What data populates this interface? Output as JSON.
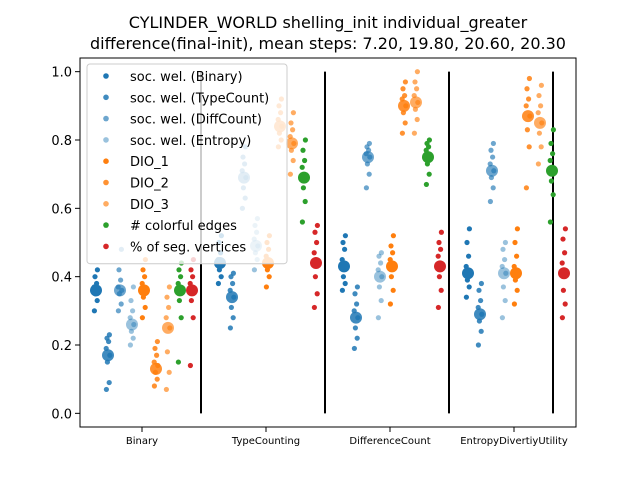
{
  "chart_data": {
    "type": "scatter",
    "title": "CYLINDER_WORLD shelling_init individual_greater",
    "subtitle": "difference(final-init), mean steps: 7.20, 19.80, 20.60, 20.30",
    "xlabel": "",
    "ylabel": "",
    "ylim": [
      -0.04,
      1.04
    ],
    "yticks": [
      "0.0",
      "0.2",
      "0.4",
      "0.6",
      "0.8",
      "1.0"
    ],
    "categories": [
      "Binary",
      "TypeCounting",
      "DifferenceCount",
      "EntropyDivertiyUtility"
    ],
    "legend_position": "upper-left",
    "grid": false,
    "series": [
      {
        "name": "soc. wel. (Binary)",
        "color": "#1f77b4",
        "alpha": 1.0,
        "means": [
          0.36,
          0.44,
          0.43,
          0.41
        ],
        "points": [
          [
            0.3,
            0.33,
            0.35,
            0.36,
            0.37,
            0.38,
            0.4,
            0.42
          ],
          [
            0.38,
            0.4,
            0.42,
            0.44,
            0.45,
            0.47,
            0.5,
            0.52
          ],
          [
            0.36,
            0.38,
            0.4,
            0.43,
            0.45,
            0.48,
            0.5,
            0.52
          ],
          [
            0.34,
            0.37,
            0.39,
            0.41,
            0.43,
            0.46,
            0.5,
            0.54
          ]
        ]
      },
      {
        "name": "soc. wel. (TypeCount)",
        "color": "#1f77b4",
        "alpha": 0.85,
        "means": [
          0.17,
          0.34,
          0.28,
          0.29
        ],
        "points": [
          [
            0.07,
            0.09,
            0.15,
            0.17,
            0.19,
            0.21,
            0.22,
            0.23
          ],
          [
            0.25,
            0.28,
            0.31,
            0.34,
            0.36,
            0.38,
            0.4,
            0.41
          ],
          [
            0.19,
            0.22,
            0.25,
            0.28,
            0.3,
            0.32,
            0.35,
            0.37
          ],
          [
            0.2,
            0.24,
            0.27,
            0.29,
            0.31,
            0.33,
            0.36,
            0.38
          ]
        ]
      },
      {
        "name": "soc. wel. (DiffCount)",
        "color": "#1f77b4",
        "alpha": 0.65,
        "means": [
          0.36,
          0.69,
          0.75,
          0.71
        ],
        "points": [
          [
            0.3,
            0.32,
            0.35,
            0.36,
            0.37,
            0.39,
            0.42,
            0.48
          ],
          [
            0.6,
            0.63,
            0.66,
            0.69,
            0.71,
            0.73,
            0.75,
            0.78
          ],
          [
            0.66,
            0.7,
            0.73,
            0.75,
            0.76,
            0.77,
            0.78,
            0.79
          ],
          [
            0.62,
            0.66,
            0.69,
            0.71,
            0.73,
            0.75,
            0.77,
            0.79
          ]
        ]
      },
      {
        "name": "soc. wel. (Entropy)",
        "color": "#1f77b4",
        "alpha": 0.45,
        "means": [
          0.26,
          0.49,
          0.4,
          0.41
        ],
        "points": [
          [
            0.2,
            0.22,
            0.24,
            0.26,
            0.28,
            0.3,
            0.33,
            0.37
          ],
          [
            0.42,
            0.45,
            0.47,
            0.49,
            0.51,
            0.53,
            0.55,
            0.57
          ],
          [
            0.28,
            0.33,
            0.37,
            0.4,
            0.42,
            0.44,
            0.46,
            0.47
          ],
          [
            0.28,
            0.33,
            0.37,
            0.41,
            0.43,
            0.45,
            0.48,
            0.5
          ]
        ]
      },
      {
        "name": "DIO_1",
        "color": "#ff7f0e",
        "alpha": 1.0,
        "means": [
          0.36,
          0.44,
          0.43,
          0.41
        ],
        "points": [
          [
            0.28,
            0.31,
            0.34,
            0.36,
            0.38,
            0.4,
            0.42,
            0.45
          ],
          [
            0.37,
            0.4,
            0.42,
            0.44,
            0.46,
            0.48,
            0.5,
            0.52
          ],
          [
            0.32,
            0.36,
            0.4,
            0.43,
            0.45,
            0.47,
            0.49,
            0.52
          ],
          [
            0.32,
            0.36,
            0.39,
            0.41,
            0.43,
            0.46,
            0.5,
            0.54
          ]
        ]
      },
      {
        "name": "DIO_2",
        "color": "#ff7f0e",
        "alpha": 0.85,
        "means": [
          0.13,
          0.84,
          0.9,
          0.87
        ],
        "points": [
          [
            0.08,
            0.1,
            0.12,
            0.14,
            0.15,
            0.17,
            0.19,
            0.21
          ],
          [
            0.78,
            0.8,
            0.82,
            0.84,
            0.86,
            0.88,
            0.9,
            0.92
          ],
          [
            0.82,
            0.85,
            0.88,
            0.9,
            0.92,
            0.93,
            0.95,
            0.97
          ],
          [
            0.66,
            0.78,
            0.83,
            0.87,
            0.9,
            0.92,
            0.95,
            0.98
          ]
        ]
      },
      {
        "name": "DIO_3",
        "color": "#ff7f0e",
        "alpha": 0.65,
        "means": [
          0.25,
          0.79,
          0.91,
          0.85
        ],
        "points": [
          [
            0.07,
            0.12,
            0.18,
            0.25,
            0.28,
            0.31,
            0.34,
            0.37
          ],
          [
            0.7,
            0.74,
            0.77,
            0.79,
            0.81,
            0.83,
            0.85,
            0.88
          ],
          [
            0.82,
            0.86,
            0.89,
            0.91,
            0.93,
            0.95,
            0.97,
            1.0
          ],
          [
            0.73,
            0.78,
            0.82,
            0.85,
            0.88,
            0.9,
            0.93,
            0.96
          ]
        ]
      },
      {
        "name": "# colorful edges",
        "color": "#2ca02c",
        "alpha": 1.0,
        "means": [
          0.36,
          0.69,
          0.75,
          0.71
        ],
        "points": [
          [
            0.15,
            0.28,
            0.33,
            0.36,
            0.38,
            0.4,
            0.42,
            0.44
          ],
          [
            0.56,
            0.62,
            0.66,
            0.69,
            0.72,
            0.74,
            0.77,
            0.8
          ],
          [
            0.67,
            0.7,
            0.73,
            0.75,
            0.77,
            0.78,
            0.79,
            0.8
          ],
          [
            0.56,
            0.64,
            0.68,
            0.71,
            0.74,
            0.76,
            0.79,
            0.83
          ]
        ]
      },
      {
        "name": "% of seg. vertices",
        "color": "#d62728",
        "alpha": 1.0,
        "means": [
          0.36,
          0.44,
          0.43,
          0.41
        ],
        "points": [
          [
            0.14,
            0.28,
            0.33,
            0.36,
            0.38,
            0.4,
            0.42,
            0.45
          ],
          [
            0.31,
            0.35,
            0.4,
            0.44,
            0.47,
            0.5,
            0.53,
            0.55
          ],
          [
            0.31,
            0.36,
            0.4,
            0.43,
            0.46,
            0.48,
            0.5,
            0.53
          ],
          [
            0.28,
            0.32,
            0.36,
            0.41,
            0.44,
            0.47,
            0.51,
            0.54
          ]
        ]
      }
    ]
  }
}
